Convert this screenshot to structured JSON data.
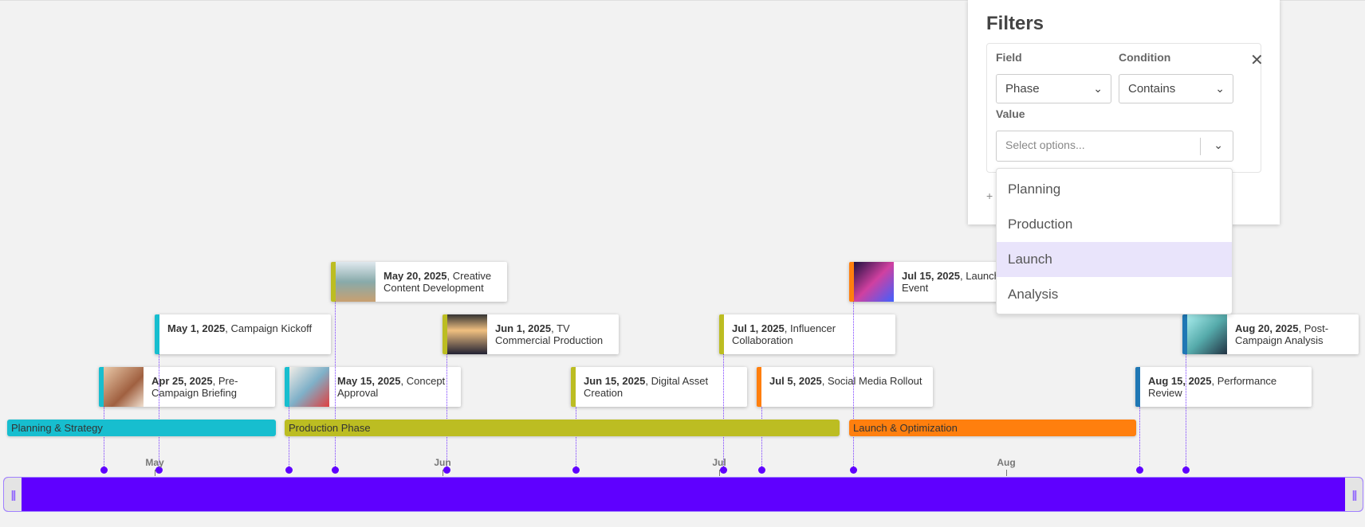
{
  "colors": {
    "planning": "#17becf",
    "production": "#bcbd22",
    "launch": "#ff7f0e",
    "analysis": "#1f77b4",
    "axis": "#5f00ff",
    "highlight": "#e9e4fb"
  },
  "filters": {
    "title": "Filters",
    "field_label": "Field",
    "field_value": "Phase",
    "condition_label": "Condition",
    "condition_value": "Contains",
    "value_label": "Value",
    "value_placeholder": "Select options...",
    "add_label": "+",
    "options": [
      "Planning",
      "Production",
      "Launch",
      "Analysis"
    ],
    "highlighted_option": "Launch"
  },
  "phases": [
    {
      "label": "Planning & Strategy",
      "color": "#17becf"
    },
    {
      "label": "Production Phase",
      "color": "#bcbd22"
    },
    {
      "label": "Launch & Optimization",
      "color": "#ff7f0e"
    }
  ],
  "months": [
    "May",
    "Jun",
    "Jul",
    "Aug"
  ],
  "events": [
    {
      "date": "Apr 25, 2025",
      "title": "Pre-Campaign Briefing",
      "color": "#17becf",
      "image": true
    },
    {
      "date": "May 1, 2025",
      "title": "Campaign Kickoff",
      "color": "#17becf",
      "image": false
    },
    {
      "date": "May 15, 2025",
      "title": "Concept Approval",
      "color": "#17becf",
      "image": true
    },
    {
      "date": "May 20, 2025",
      "title": "Creative Content Development",
      "color": "#bcbd22",
      "image": true
    },
    {
      "date": "Jun 1, 2025",
      "title": "TV Commercial Production",
      "color": "#bcbd22",
      "image": true
    },
    {
      "date": "Jun 15, 2025",
      "title": "Digital Asset Creation",
      "color": "#bcbd22",
      "image": false
    },
    {
      "date": "Jul 1, 2025",
      "title": "Influencer Collaboration",
      "color": "#bcbd22",
      "image": false
    },
    {
      "date": "Jul 5, 2025",
      "title": "Social Media Rollout",
      "color": "#ff7f0e",
      "image": false
    },
    {
      "date": "Jul 15, 2025",
      "title": "Launch Event",
      "color": "#ff7f0e",
      "image": true
    },
    {
      "date": "Aug 15, 2025",
      "title": "Performance Review",
      "color": "#1f77b4",
      "image": false
    },
    {
      "date": "Aug 20, 2025",
      "title": "Post-Campaign Analysis",
      "color": "#1f77b4",
      "image": true
    }
  ]
}
